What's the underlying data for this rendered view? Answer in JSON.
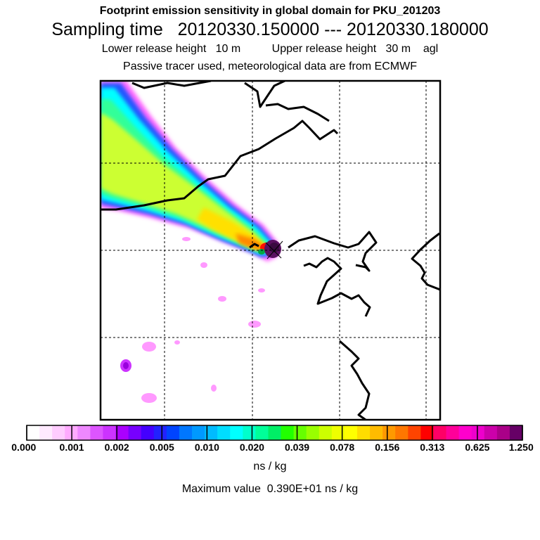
{
  "header": {
    "title": "Footprint emission sensitivity in global domain for PKU_201203",
    "sampling": "Sampling time   20120330.150000 --- 20120330.180000",
    "release": "Lower release height   10 m          Upper release height   30 m    agl",
    "tracer": "Passive tracer used, meteorological data are from ECMWF"
  },
  "map": {
    "grid": "dashed",
    "plume_colors": [
      "#ff00ff",
      "#00ffff",
      "#44ff88",
      "#ccff33",
      "#ffd000",
      "#ff6600",
      "#ff0000",
      "#6a1b6a"
    ],
    "coastline_color": "#000000"
  },
  "colorbar": {
    "unit": "ns / kg",
    "tick_labels": [
      "0.000",
      "0.001",
      "0.002",
      "0.005",
      "0.010",
      "0.020",
      "0.039",
      "0.078",
      "0.156",
      "0.313",
      "0.625",
      "1.250"
    ],
    "colors": [
      "#ffffff",
      "#ffeaff",
      "#ffccff",
      "#ffaaff",
      "#ee88ff",
      "#dd55ff",
      "#cc33ff",
      "#aa00ff",
      "#7700ff",
      "#4400ff",
      "#2222ff",
      "#0044ff",
      "#0077ff",
      "#0099ff",
      "#00bbff",
      "#00ddff",
      "#00ffff",
      "#00ffcc",
      "#00ff99",
      "#00ee66",
      "#22ff00",
      "#66ff00",
      "#99ff00",
      "#ccff00",
      "#eeff00",
      "#ffff00",
      "#ffdd00",
      "#ffbb00",
      "#ff9900",
      "#ff7700",
      "#ff4400",
      "#ff0000",
      "#ff0066",
      "#ff0099",
      "#ff00cc",
      "#ee00cc",
      "#cc00aa",
      "#aa0088",
      "#660066"
    ]
  },
  "footer": {
    "max_value": "Maximum value  0.390E+01 ns / kg"
  }
}
